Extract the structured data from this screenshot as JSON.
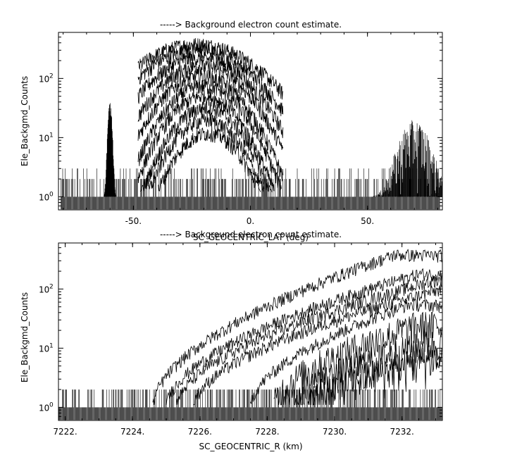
{
  "chart_data": [
    {
      "type": "line",
      "title": "-----> Background electron count estimate.",
      "xlabel": "SC_GEOCENTRIC_LAT (deg)",
      "ylabel": "Ele_Backgmd_Counts",
      "xlim": [
        -82,
        82
      ],
      "ylim": [
        0.6,
        600
      ],
      "yscale": "log",
      "xticks": [
        {
          "value": -50,
          "label": "-50."
        },
        {
          "value": 0,
          "label": "0."
        },
        {
          "value": 50,
          "label": "50."
        }
      ],
      "yticks": [
        {
          "value": 1,
          "base": "10",
          "exp": "0"
        },
        {
          "value": 10,
          "base": "10",
          "exp": "1"
        },
        {
          "value": 100,
          "base": "10",
          "exp": "2"
        }
      ],
      "noise_floor": {
        "x_range": [
          -81,
          81
        ],
        "min": 1,
        "max": 3
      },
      "features": [
        {
          "kind": "spike",
          "x": -60,
          "peak": 40
        },
        {
          "kind": "bump",
          "x_range": [
            52,
            82
          ],
          "peak": 20
        }
      ],
      "series": [
        {
          "peak": 380,
          "center": -23
        },
        {
          "peak": 300,
          "center": -23
        },
        {
          "peak": 220,
          "center": -22
        },
        {
          "peak": 160,
          "center": -21
        },
        {
          "peak": 110,
          "center": -21
        },
        {
          "peak": 75,
          "center": -20
        },
        {
          "peak": 50,
          "center": -20
        },
        {
          "peak": 32,
          "center": -19
        },
        {
          "peak": 20,
          "center": -19
        },
        {
          "peak": 12,
          "center": -18
        }
      ]
    },
    {
      "type": "line",
      "title": "-----> Background electron count estimate.",
      "xlabel": "SC_GEOCENTRIC_R (km)",
      "ylabel": "Ele_Backgmd_Counts",
      "xlim": [
        7221.8,
        7233.2
      ],
      "ylim": [
        0.6,
        600
      ],
      "yscale": "log",
      "xticks": [
        {
          "value": 7222,
          "label": "7222."
        },
        {
          "value": 7224,
          "label": "7224."
        },
        {
          "value": 7226,
          "label": "7226."
        },
        {
          "value": 7228,
          "label": "7228."
        },
        {
          "value": 7230,
          "label": "7230."
        },
        {
          "value": 7232,
          "label": "7232."
        }
      ],
      "yticks": [
        {
          "value": 1,
          "base": "10",
          "exp": "0"
        },
        {
          "value": 10,
          "base": "10",
          "exp": "1"
        },
        {
          "value": 100,
          "base": "10",
          "exp": "2"
        }
      ],
      "noise_floor": {
        "x_range": [
          7221.8,
          7233.2
        ],
        "min": 1,
        "max": 2
      },
      "series": [
        {
          "start": 7224.6,
          "peak": 380,
          "peak_x": 7231.8
        },
        {
          "start": 7225.0,
          "peak": 180,
          "peak_x": 7232.5
        },
        {
          "start": 7225.3,
          "peak": 140,
          "peak_x": 7233.0
        },
        {
          "start": 7225.8,
          "peak": 100,
          "peak_x": 7233.2
        },
        {
          "start": 7227.5,
          "peak": 55,
          "peak_x": 7232.2
        },
        {
          "start": 7228.2,
          "peak": 25,
          "peak_x": 7232.5
        },
        {
          "start": 7228.8,
          "peak": 12,
          "peak_x": 7232.8
        },
        {
          "start": 7229.2,
          "peak": 7,
          "peak_x": 7233.0
        }
      ]
    }
  ]
}
